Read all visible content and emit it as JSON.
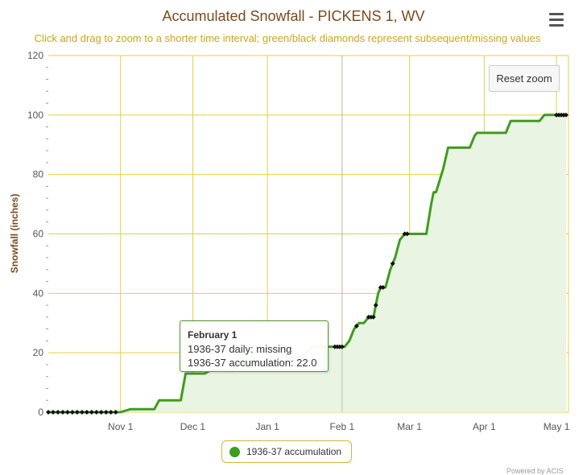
{
  "chart_data": {
    "type": "area",
    "title": "Accumulated Snowfall - PICKENS 1, WV",
    "subtitle": "Click and drag to zoom to a shorter time interval; green/black diamonds represent subsequent/missing values",
    "ylabel": "Snowfall (inches)",
    "ylim": [
      0,
      120
    ],
    "yticks": [
      0,
      20,
      40,
      60,
      80,
      100,
      120
    ],
    "xlim": [
      "1936-10-02",
      "1937-05-06"
    ],
    "xticks": [
      {
        "label": "Nov 1",
        "date": "1936-11-01"
      },
      {
        "label": "Dec 1",
        "date": "1936-12-01"
      },
      {
        "label": "Jan 1",
        "date": "1937-01-01"
      },
      {
        "label": "Feb 1",
        "date": "1937-02-01"
      },
      {
        "label": "Mar 1",
        "date": "1937-03-01"
      },
      {
        "label": "Apr 1",
        "date": "1937-04-01"
      },
      {
        "label": "May 1",
        "date": "1937-05-01"
      }
    ],
    "grid": true,
    "legend_position": "bottom-center",
    "series": [
      {
        "name": "1936-37 accumulation",
        "color": "#3f9c1f",
        "points": [
          [
            "1936-10-02",
            0
          ],
          [
            "1936-11-01",
            0
          ],
          [
            "1936-11-05",
            1
          ],
          [
            "1936-11-15",
            1
          ],
          [
            "1936-11-17",
            4
          ],
          [
            "1936-11-26",
            4
          ],
          [
            "1936-11-28",
            13
          ],
          [
            "1936-12-06",
            13
          ],
          [
            "1936-12-08",
            14
          ],
          [
            "1936-12-18",
            14
          ],
          [
            "1936-12-20",
            17
          ],
          [
            "1937-01-04",
            17
          ],
          [
            "1937-01-06",
            18.5
          ],
          [
            "1937-01-15",
            18.5
          ],
          [
            "1937-01-17",
            20
          ],
          [
            "1937-01-20",
            22
          ],
          [
            "1937-02-02",
            22
          ],
          [
            "1937-02-04",
            24
          ],
          [
            "1937-02-06",
            28
          ],
          [
            "1937-02-08",
            30
          ],
          [
            "1937-02-10",
            30
          ],
          [
            "1937-02-12",
            32
          ],
          [
            "1937-02-14",
            32
          ],
          [
            "1937-02-15",
            36
          ],
          [
            "1937-02-16",
            40
          ],
          [
            "1937-02-17",
            42
          ],
          [
            "1937-02-19",
            42
          ],
          [
            "1937-02-21",
            48
          ],
          [
            "1937-02-23",
            52
          ],
          [
            "1937-02-25",
            58
          ],
          [
            "1937-02-27",
            60
          ],
          [
            "1937-03-08",
            60
          ],
          [
            "1937-03-10",
            70
          ],
          [
            "1937-03-11",
            74
          ],
          [
            "1937-03-12",
            74
          ],
          [
            "1937-03-15",
            82
          ],
          [
            "1937-03-17",
            89
          ],
          [
            "1937-03-26",
            89
          ],
          [
            "1937-03-28",
            93
          ],
          [
            "1937-03-29",
            94
          ],
          [
            "1937-04-10",
            94
          ],
          [
            "1937-04-12",
            98
          ],
          [
            "1937-04-24",
            98
          ],
          [
            "1937-04-26",
            100
          ],
          [
            "1937-05-05",
            100
          ]
        ]
      }
    ],
    "missing_markers": [
      "1936-10-02",
      "1936-10-04",
      "1936-10-06",
      "1936-10-08",
      "1936-10-10",
      "1936-10-12",
      "1936-10-14",
      "1936-10-16",
      "1936-10-18",
      "1936-10-20",
      "1936-10-22",
      "1936-10-24",
      "1936-10-26",
      "1936-10-28",
      "1936-10-30",
      "1937-01-29",
      "1937-01-30",
      "1937-01-31",
      "1937-02-01",
      "1937-02-07",
      "1937-02-12",
      "1937-02-13",
      "1937-02-14",
      "1937-02-15",
      "1937-02-17",
      "1937-02-18",
      "1937-02-22",
      "1937-02-27",
      "1937-02-28",
      "1937-05-01",
      "1937-05-02",
      "1937-05-03",
      "1937-05-04",
      "1937-05-05"
    ],
    "crosshair_date": "1937-02-01"
  },
  "tooltip": {
    "date": "February 1",
    "daily_line": "1936-37 daily: missing",
    "accum_line": "1936-37 accumulation: 22.0"
  },
  "ui": {
    "reset_zoom_label": "Reset zoom",
    "menu_icon": "hamburger-menu-icon",
    "credits": "Powered by ACIS"
  },
  "colors": {
    "line": "#3f9c1f",
    "area_fill": "#eaf4e2",
    "grid": "#e6cf3c",
    "title": "#7a4a1c",
    "subtitle": "#c9a718"
  }
}
